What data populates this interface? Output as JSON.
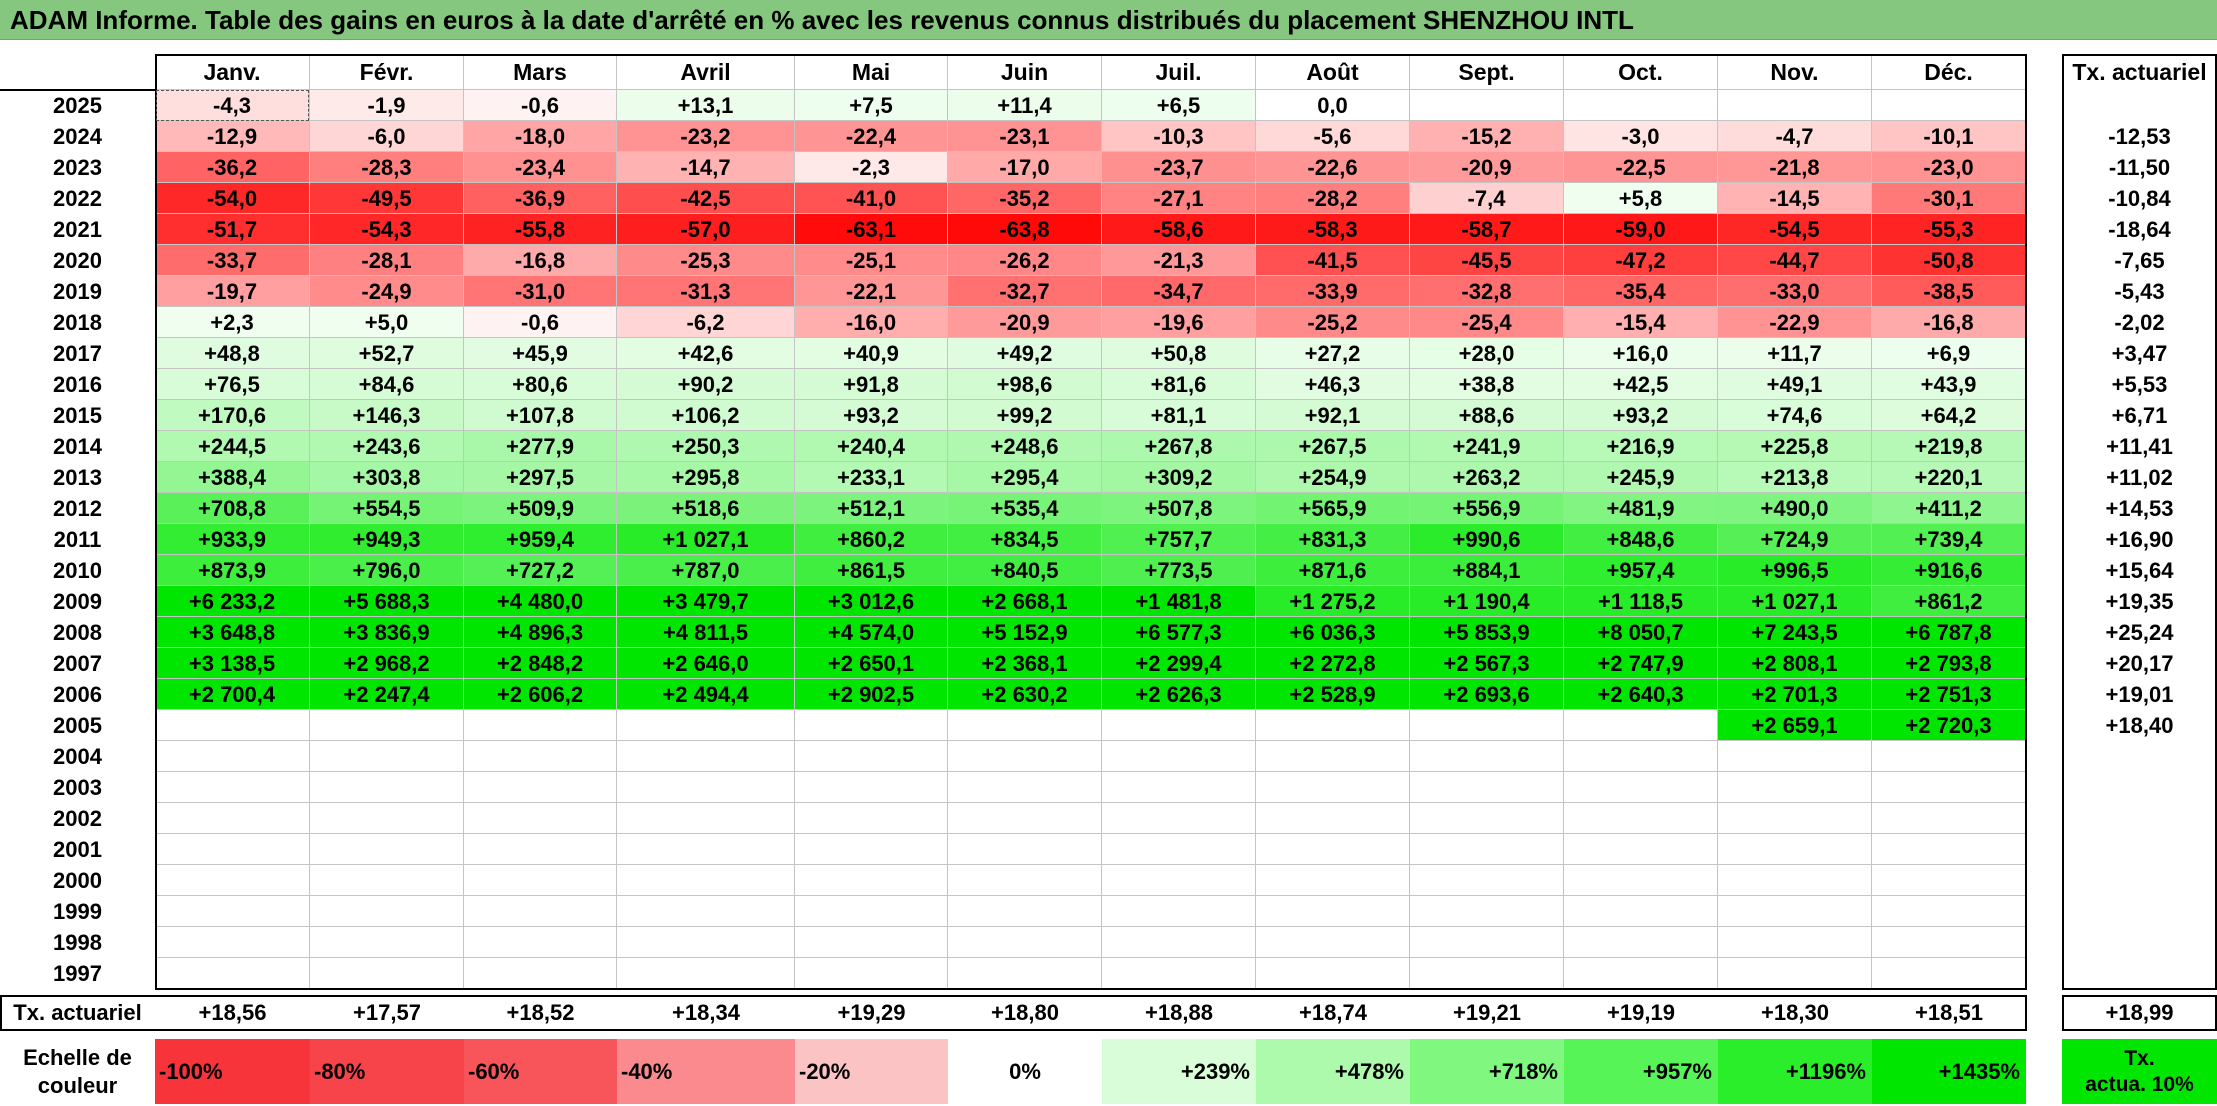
{
  "title": "ADAM Informe. Table des gains en euros à la date d'arrêté en % avec les revenus connus distribués du placement SHENZHOU INTL",
  "months": [
    "Janv.",
    "Févr.",
    "Mars",
    "Avril",
    "Mai",
    "Juin",
    "Juil.",
    "Août",
    "Sept.",
    "Oct.",
    "Nov.",
    "Déc."
  ],
  "tx_header": "Tx. actuariel",
  "rows": [
    {
      "year": "2025",
      "values": [
        "-4,3",
        "-1,9",
        "-0,6",
        "+13,1",
        "+7,5",
        "+11,4",
        "+6,5",
        "0,0",
        "",
        "",
        "",
        ""
      ],
      "tx": ""
    },
    {
      "year": "2024",
      "values": [
        "-12,9",
        "-6,0",
        "-18,0",
        "-23,2",
        "-22,4",
        "-23,1",
        "-10,3",
        "-5,6",
        "-15,2",
        "-3,0",
        "-4,7",
        "-10,1"
      ],
      "tx": "-12,53"
    },
    {
      "year": "2023",
      "values": [
        "-36,2",
        "-28,3",
        "-23,4",
        "-14,7",
        "-2,3",
        "-17,0",
        "-23,7",
        "-22,6",
        "-20,9",
        "-22,5",
        "-21,8",
        "-23,0"
      ],
      "tx": "-11,50"
    },
    {
      "year": "2022",
      "values": [
        "-54,0",
        "-49,5",
        "-36,9",
        "-42,5",
        "-41,0",
        "-35,2",
        "-27,1",
        "-28,2",
        "-7,4",
        "+5,8",
        "-14,5",
        "-30,1"
      ],
      "tx": "-10,84"
    },
    {
      "year": "2021",
      "values": [
        "-51,7",
        "-54,3",
        "-55,8",
        "-57,0",
        "-63,1",
        "-63,8",
        "-58,6",
        "-58,3",
        "-58,7",
        "-59,0",
        "-54,5",
        "-55,3"
      ],
      "tx": "-18,64"
    },
    {
      "year": "2020",
      "values": [
        "-33,7",
        "-28,1",
        "-16,8",
        "-25,3",
        "-25,1",
        "-26,2",
        "-21,3",
        "-41,5",
        "-45,5",
        "-47,2",
        "-44,7",
        "-50,8"
      ],
      "tx": "-7,65"
    },
    {
      "year": "2019",
      "values": [
        "-19,7",
        "-24,9",
        "-31,0",
        "-31,3",
        "-22,1",
        "-32,7",
        "-34,7",
        "-33,9",
        "-32,8",
        "-35,4",
        "-33,0",
        "-38,5"
      ],
      "tx": "-5,43"
    },
    {
      "year": "2018",
      "values": [
        "+2,3",
        "+5,0",
        "-0,6",
        "-6,2",
        "-16,0",
        "-20,9",
        "-19,6",
        "-25,2",
        "-25,4",
        "-15,4",
        "-22,9",
        "-16,8"
      ],
      "tx": "-2,02"
    },
    {
      "year": "2017",
      "values": [
        "+48,8",
        "+52,7",
        "+45,9",
        "+42,6",
        "+40,9",
        "+49,2",
        "+50,8",
        "+27,2",
        "+28,0",
        "+16,0",
        "+11,7",
        "+6,9"
      ],
      "tx": "+3,47"
    },
    {
      "year": "2016",
      "values": [
        "+76,5",
        "+84,6",
        "+80,6",
        "+90,2",
        "+91,8",
        "+98,6",
        "+81,6",
        "+46,3",
        "+38,8",
        "+42,5",
        "+49,1",
        "+43,9"
      ],
      "tx": "+5,53"
    },
    {
      "year": "2015",
      "values": [
        "+170,6",
        "+146,3",
        "+107,8",
        "+106,2",
        "+93,2",
        "+99,2",
        "+81,1",
        "+92,1",
        "+88,6",
        "+93,2",
        "+74,6",
        "+64,2"
      ],
      "tx": "+6,71"
    },
    {
      "year": "2014",
      "values": [
        "+244,5",
        "+243,6",
        "+277,9",
        "+250,3",
        "+240,4",
        "+248,6",
        "+267,8",
        "+267,5",
        "+241,9",
        "+216,9",
        "+225,8",
        "+219,8"
      ],
      "tx": "+11,41"
    },
    {
      "year": "2013",
      "values": [
        "+388,4",
        "+303,8",
        "+297,5",
        "+295,8",
        "+233,1",
        "+295,4",
        "+309,2",
        "+254,9",
        "+263,2",
        "+245,9",
        "+213,8",
        "+220,1"
      ],
      "tx": "+11,02"
    },
    {
      "year": "2012",
      "values": [
        "+708,8",
        "+554,5",
        "+509,9",
        "+518,6",
        "+512,1",
        "+535,4",
        "+507,8",
        "+565,9",
        "+556,9",
        "+481,9",
        "+490,0",
        "+411,2"
      ],
      "tx": "+14,53"
    },
    {
      "year": "2011",
      "values": [
        "+933,9",
        "+949,3",
        "+959,4",
        "+1 027,1",
        "+860,2",
        "+834,5",
        "+757,7",
        "+831,3",
        "+990,6",
        "+848,6",
        "+724,9",
        "+739,4"
      ],
      "tx": "+16,90"
    },
    {
      "year": "2010",
      "values": [
        "+873,9",
        "+796,0",
        "+727,2",
        "+787,0",
        "+861,5",
        "+840,5",
        "+773,5",
        "+871,6",
        "+884,1",
        "+957,4",
        "+996,5",
        "+916,6"
      ],
      "tx": "+15,64"
    },
    {
      "year": "2009",
      "values": [
        "+6 233,2",
        "+5 688,3",
        "+4 480,0",
        "+3 479,7",
        "+3 012,6",
        "+2 668,1",
        "+1 481,8",
        "+1 275,2",
        "+1 190,4",
        "+1 118,5",
        "+1 027,1",
        "+861,2"
      ],
      "tx": "+19,35"
    },
    {
      "year": "2008",
      "values": [
        "+3 648,8",
        "+3 836,9",
        "+4 896,3",
        "+4 811,5",
        "+4 574,0",
        "+5 152,9",
        "+6 577,3",
        "+6 036,3",
        "+5 853,9",
        "+8 050,7",
        "+7 243,5",
        "+6 787,8"
      ],
      "tx": "+25,24"
    },
    {
      "year": "2007",
      "values": [
        "+3 138,5",
        "+2 968,2",
        "+2 848,2",
        "+2 646,0",
        "+2 650,1",
        "+2 368,1",
        "+2 299,4",
        "+2 272,8",
        "+2 567,3",
        "+2 747,9",
        "+2 808,1",
        "+2 793,8"
      ],
      "tx": "+20,17"
    },
    {
      "year": "2006",
      "values": [
        "+2 700,4",
        "+2 247,4",
        "+2 606,2",
        "+2 494,4",
        "+2 902,5",
        "+2 630,2",
        "+2 626,3",
        "+2 528,9",
        "+2 693,6",
        "+2 640,3",
        "+2 701,3",
        "+2 751,3"
      ],
      "tx": "+19,01"
    },
    {
      "year": "2005",
      "values": [
        "",
        "",
        "",
        "",
        "",
        "",
        "",
        "",
        "",
        "",
        "+2 659,1",
        "+2 720,3"
      ],
      "tx": "+18,40"
    },
    {
      "year": "2004",
      "values": [
        "",
        "",
        "",
        "",
        "",
        "",
        "",
        "",
        "",
        "",
        "",
        ""
      ],
      "tx": ""
    },
    {
      "year": "2003",
      "values": [
        "",
        "",
        "",
        "",
        "",
        "",
        "",
        "",
        "",
        "",
        "",
        ""
      ],
      "tx": ""
    },
    {
      "year": "2002",
      "values": [
        "",
        "",
        "",
        "",
        "",
        "",
        "",
        "",
        "",
        "",
        "",
        ""
      ],
      "tx": ""
    },
    {
      "year": "2001",
      "values": [
        "",
        "",
        "",
        "",
        "",
        "",
        "",
        "",
        "",
        "",
        "",
        ""
      ],
      "tx": ""
    },
    {
      "year": "2000",
      "values": [
        "",
        "",
        "",
        "",
        "",
        "",
        "",
        "",
        "",
        "",
        "",
        ""
      ],
      "tx": ""
    },
    {
      "year": "1999",
      "values": [
        "",
        "",
        "",
        "",
        "",
        "",
        "",
        "",
        "",
        "",
        "",
        ""
      ],
      "tx": ""
    },
    {
      "year": "1998",
      "values": [
        "",
        "",
        "",
        "",
        "",
        "",
        "",
        "",
        "",
        "",
        "",
        ""
      ],
      "tx": ""
    },
    {
      "year": "1997",
      "values": [
        "",
        "",
        "",
        "",
        "",
        "",
        "",
        "",
        "",
        "",
        "",
        ""
      ],
      "tx": ""
    }
  ],
  "footer": {
    "label": "Tx. actuariel",
    "values": [
      "+18,56",
      "+17,57",
      "+18,52",
      "+18,34",
      "+19,29",
      "+18,80",
      "+18,88",
      "+18,74",
      "+19,21",
      "+19,19",
      "+18,30",
      "+18,51"
    ],
    "total": "+18,99"
  },
  "scale": {
    "label_line1": "Echelle de",
    "label_line2": "couleur",
    "items": [
      {
        "label": "-100%",
        "color": "#f7343a",
        "align": "left"
      },
      {
        "label": "-80%",
        "color": "#f7444a",
        "align": "left"
      },
      {
        "label": "-60%",
        "color": "#f8555a",
        "align": "left"
      },
      {
        "label": "-40%",
        "color": "#fa8a8d",
        "align": "left"
      },
      {
        "label": "-20%",
        "color": "#fcc3c4",
        "align": "left"
      },
      {
        "label": "0%",
        "color": "#ffffff",
        "align": "center"
      },
      {
        "label": "+239%",
        "color": "#d8fdd8",
        "align": "right"
      },
      {
        "label": "+478%",
        "color": "#adfaad",
        "align": "right"
      },
      {
        "label": "+718%",
        "color": "#80f880",
        "align": "right"
      },
      {
        "label": "+957%",
        "color": "#56f456",
        "align": "right"
      },
      {
        "label": "+1196%",
        "color": "#2bee2b",
        "align": "right"
      },
      {
        "label": "+1435%",
        "color": "#00e600",
        "align": "right"
      }
    ],
    "tx_legend_line1": "Tx.",
    "tx_legend_line2": "actua. 10%",
    "tx_legend_color": "#00e600"
  }
}
